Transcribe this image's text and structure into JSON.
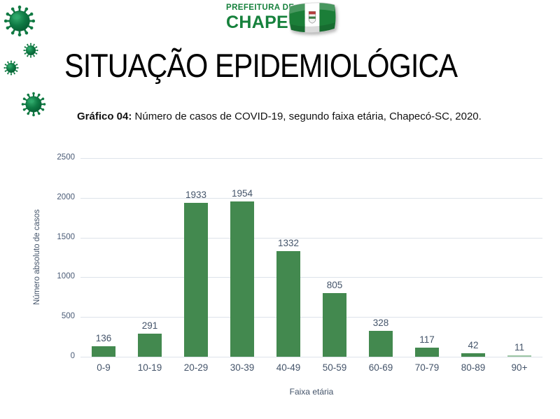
{
  "header": {
    "logo_line1": "PREFEITURA DE",
    "logo_line2": "CHAPECÓ",
    "logo_color": "#16813C",
    "flag_icon": "chapeco-flag-icon"
  },
  "title": "SITUAÇÃO EPIDEMIOLÓGICA",
  "caption": {
    "prefix": "Gráfico 04:",
    "text": " Número de casos de COVID-19, segundo faixa etária, Chapecó-SC, 2020."
  },
  "chart_data": {
    "type": "bar",
    "title": "",
    "categories": [
      "0-9",
      "10-19",
      "20-29",
      "30-39",
      "40-49",
      "50-59",
      "60-69",
      "70-79",
      "80-89",
      "90+"
    ],
    "values": [
      136,
      291,
      1933,
      1954,
      1332,
      805,
      328,
      117,
      42,
      11
    ],
    "xlabel": "Faixa etária",
    "ylabel": "Número absoluto de casos",
    "ylim": [
      0,
      2500
    ],
    "yticks": [
      0,
      500,
      1000,
      1500,
      2000,
      2500
    ],
    "grid": true,
    "legend": false,
    "bar_color": "#43894F",
    "small_bar_color": "#9CC6A4",
    "label_color": "#44546A",
    "gridline_color": "#dde3ea"
  },
  "decorations": {
    "virus_icon": "coronavirus-icon",
    "virus_icon_count": 4,
    "virus_color": "#0E7A44"
  }
}
